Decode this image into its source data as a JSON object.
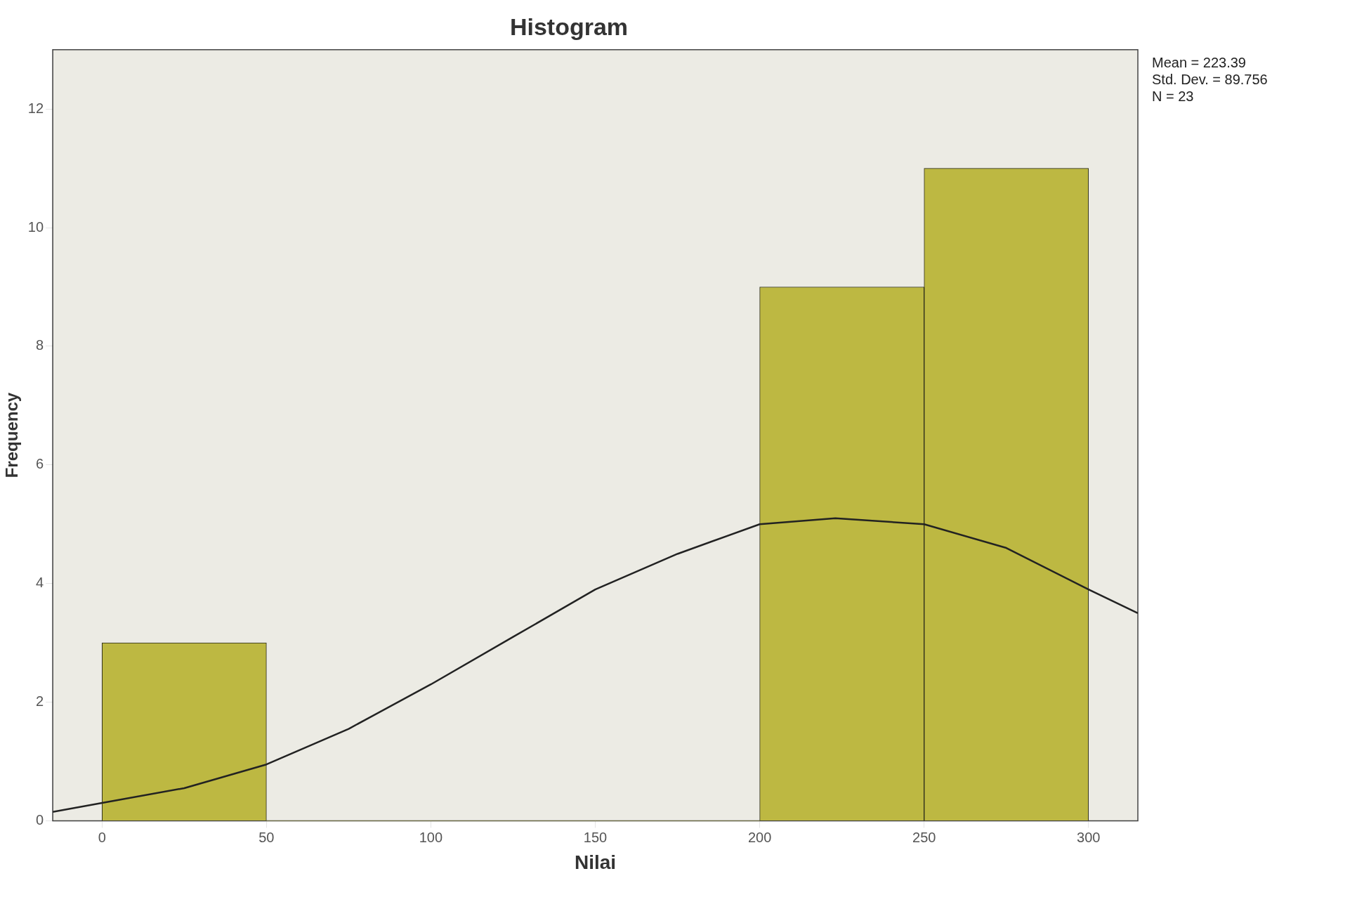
{
  "chart_data": {
    "type": "histogram",
    "title": "Histogram",
    "xlabel": "Nilai",
    "ylabel": "Frequency",
    "bins": [
      0,
      50,
      100,
      150,
      200,
      250,
      300
    ],
    "values": [
      3,
      0,
      0,
      0,
      9,
      11
    ],
    "color": "#bdb842",
    "series": [
      {
        "type": "line",
        "color": "#222222",
        "x": [
          -15,
          0,
          25,
          50,
          75,
          100,
          125,
          150,
          175,
          200,
          223,
          250,
          275,
          300,
          315
        ],
        "values": [
          0.15,
          0.3,
          0.55,
          0.95,
          1.55,
          2.3,
          3.1,
          3.9,
          4.5,
          5.0,
          5.1,
          5.0,
          4.6,
          3.9,
          3.5
        ]
      }
    ],
    "xlim": [
      -15,
      315
    ],
    "xticks": [
      0,
      50,
      100,
      150,
      200,
      250,
      300
    ],
    "ylim": [
      0,
      13
    ],
    "yticks": [
      0,
      2,
      4,
      6,
      8,
      10,
      12
    ],
    "annotations": [
      "Mean = 223.39",
      "Std. Dev. = 89.756",
      "N = 23"
    ],
    "grid": false,
    "legend": false,
    "marker": "none"
  }
}
